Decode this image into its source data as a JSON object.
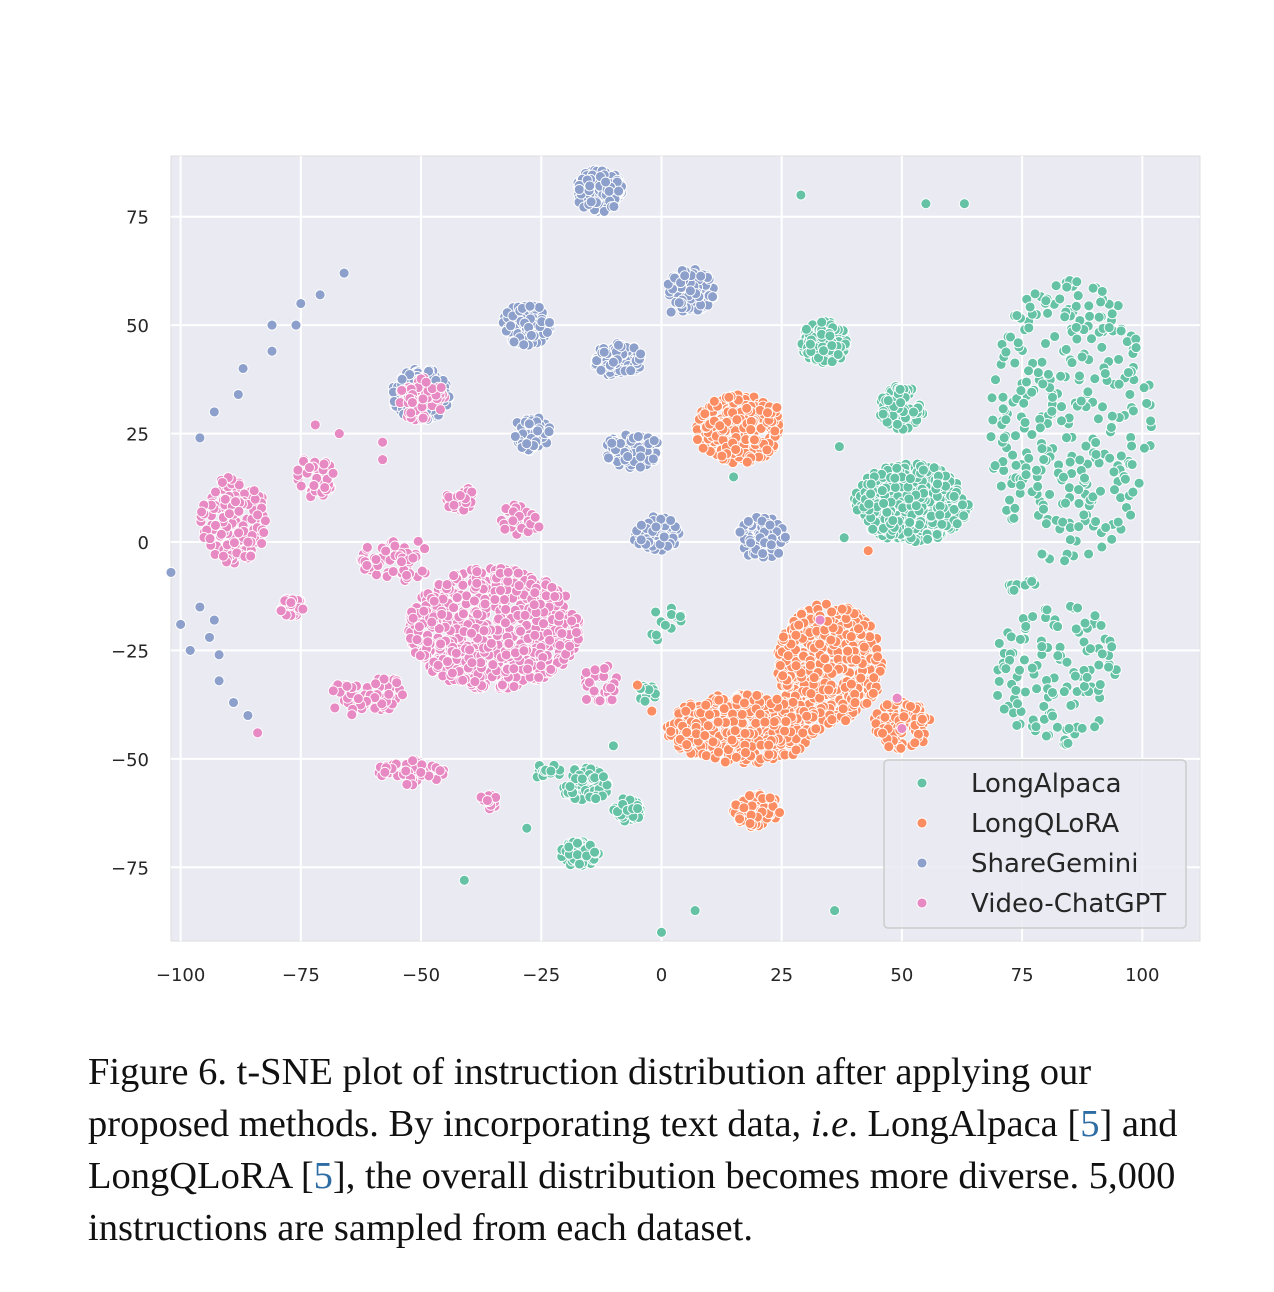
{
  "chart_data": {
    "type": "scatter",
    "xlim": [
      -102,
      112
    ],
    "ylim": [
      -92,
      89
    ],
    "xticks": [
      -100,
      -75,
      -50,
      -25,
      0,
      25,
      50,
      75,
      100
    ],
    "yticks": [
      75,
      50,
      25,
      0,
      -25,
      -50,
      -75
    ],
    "xtick_labels": [
      "−100",
      "−75",
      "−50",
      "−25",
      "0",
      "25",
      "50",
      "75",
      "100"
    ],
    "ytick_labels": [
      "75",
      "50",
      "25",
      "0",
      "−25",
      "−50",
      "−75"
    ],
    "grid": true,
    "legend_position": "lower-right",
    "series": [
      {
        "name": "LongAlpaca",
        "color": "#66c2a5",
        "clusters": [
          {
            "cx": 34,
            "cy": 46,
            "rx": 5,
            "ry": 5,
            "n": 140
          },
          {
            "cx": 50,
            "cy": 31,
            "rx": 5,
            "ry": 5,
            "n": 90
          },
          {
            "cx": 52,
            "cy": 9,
            "rx": 12,
            "ry": 9,
            "n": 450
          },
          {
            "cx": 85,
            "cy": 28,
            "rx": 17,
            "ry": 33,
            "n": 320
          },
          {
            "cx": 82,
            "cy": -30,
            "rx": 13,
            "ry": 17,
            "n": 130
          },
          {
            "cx": 1,
            "cy": -19,
            "rx": 4,
            "ry": 4,
            "n": 14
          },
          {
            "cx": -3,
            "cy": -35,
            "rx": 2,
            "ry": 2,
            "n": 15
          },
          {
            "cx": -16,
            "cy": -56,
            "rx": 5,
            "ry": 4,
            "n": 70
          },
          {
            "cx": -7,
            "cy": -62,
            "rx": 3,
            "ry": 3,
            "n": 40
          },
          {
            "cx": -17,
            "cy": -72,
            "rx": 4,
            "ry": 3,
            "n": 60
          },
          {
            "cx": -24,
            "cy": -53,
            "rx": 3,
            "ry": 2,
            "n": 12
          },
          {
            "cx": 74,
            "cy": -10,
            "rx": 4,
            "ry": 2,
            "n": 10
          }
        ],
        "points": [
          [
            29,
            80
          ],
          [
            55,
            78
          ],
          [
            63,
            78
          ],
          [
            -41,
            -78
          ],
          [
            0,
            -90
          ],
          [
            7,
            -85
          ],
          [
            36,
            -85
          ],
          [
            -28,
            -66
          ],
          [
            -10,
            -47
          ],
          [
            37,
            22
          ],
          [
            15,
            15
          ],
          [
            38,
            1
          ]
        ]
      },
      {
        "name": "LongQLoRA",
        "color": "#fc8d62",
        "clusters": [
          {
            "cx": 16,
            "cy": 26,
            "rx": 9,
            "ry": 8,
            "n": 260
          },
          {
            "cx": 35,
            "cy": -28,
            "rx": 11,
            "ry": 14,
            "n": 500
          },
          {
            "cx": 17,
            "cy": -43,
            "rx": 16,
            "ry": 8,
            "n": 350
          },
          {
            "cx": 20,
            "cy": -62,
            "rx": 5,
            "ry": 4,
            "n": 70
          },
          {
            "cx": 50,
            "cy": -42,
            "rx": 6,
            "ry": 6,
            "n": 80
          }
        ],
        "points": [
          [
            24,
            31
          ],
          [
            -5,
            -33
          ],
          [
            -2,
            -39
          ],
          [
            43,
            -2
          ]
        ]
      },
      {
        "name": "ShareGemini",
        "color": "#8da0cb",
        "clusters": [
          {
            "cx": -13,
            "cy": 81,
            "rx": 5,
            "ry": 5,
            "n": 130
          },
          {
            "cx": 6,
            "cy": 58,
            "rx": 5,
            "ry": 5,
            "n": 130
          },
          {
            "cx": -28,
            "cy": 50,
            "rx": 5,
            "ry": 5,
            "n": 130
          },
          {
            "cx": -9,
            "cy": 42,
            "rx": 5,
            "ry": 4,
            "n": 100
          },
          {
            "cx": -50,
            "cy": 34,
            "rx": 6,
            "ry": 6,
            "n": 150
          },
          {
            "cx": -27,
            "cy": 25,
            "rx": 4,
            "ry": 4,
            "n": 70
          },
          {
            "cx": -6,
            "cy": 21,
            "rx": 6,
            "ry": 4,
            "n": 100
          },
          {
            "cx": -1,
            "cy": 2,
            "rx": 5,
            "ry": 4,
            "n": 90
          },
          {
            "cx": 21,
            "cy": 1,
            "rx": 5,
            "ry": 5,
            "n": 80
          }
        ],
        "points": [
          [
            -66,
            62
          ],
          [
            -71,
            57
          ],
          [
            -75,
            55
          ],
          [
            -81,
            50
          ],
          [
            -76,
            50
          ],
          [
            -81,
            44
          ],
          [
            -87,
            40
          ],
          [
            -88,
            34
          ],
          [
            -93,
            30
          ],
          [
            -96,
            24
          ],
          [
            -102,
            -7
          ],
          [
            -100,
            -19
          ],
          [
            -98,
            -25
          ],
          [
            -96,
            -15
          ],
          [
            -94,
            -22
          ],
          [
            -93,
            -18
          ],
          [
            -92,
            -26
          ],
          [
            -92,
            -32
          ],
          [
            -89,
            -37
          ],
          [
            -86,
            -40
          ],
          [
            2,
            53
          ]
        ]
      },
      {
        "name": "Video-ChatGPT",
        "color": "#e78ac3",
        "clusters": [
          {
            "cx": -89,
            "cy": 5,
            "rx": 7,
            "ry": 10,
            "n": 160
          },
          {
            "cx": -35,
            "cy": -20,
            "rx": 18,
            "ry": 14,
            "n": 800
          },
          {
            "cx": -50,
            "cy": 33,
            "rx": 5,
            "ry": 5,
            "n": 80
          },
          {
            "cx": -42,
            "cy": 10,
            "rx": 3,
            "ry": 3,
            "n": 35
          },
          {
            "cx": -55,
            "cy": -4,
            "rx": 8,
            "ry": 5,
            "n": 60
          },
          {
            "cx": -77,
            "cy": -15,
            "rx": 3,
            "ry": 2,
            "n": 25
          },
          {
            "cx": -72,
            "cy": 15,
            "rx": 4,
            "ry": 5,
            "n": 40
          },
          {
            "cx": -58,
            "cy": -35,
            "rx": 5,
            "ry": 4,
            "n": 45
          },
          {
            "cx": -52,
            "cy": -53,
            "rx": 7,
            "ry": 3,
            "n": 45
          },
          {
            "cx": -30,
            "cy": 5,
            "rx": 5,
            "ry": 4,
            "n": 35
          },
          {
            "cx": -36,
            "cy": -60,
            "rx": 2,
            "ry": 2,
            "n": 15
          },
          {
            "cx": -13,
            "cy": -33,
            "rx": 4,
            "ry": 5,
            "n": 30
          },
          {
            "cx": -65,
            "cy": -36,
            "rx": 4,
            "ry": 4,
            "n": 25
          }
        ],
        "points": [
          [
            -84,
            -44
          ],
          [
            -72,
            27
          ],
          [
            -67,
            25
          ],
          [
            -58,
            19
          ],
          [
            -58,
            23
          ],
          [
            33,
            -18
          ],
          [
            49,
            -36
          ],
          [
            50,
            -43
          ]
        ]
      }
    ]
  },
  "caption": {
    "lead": "Figure 6. t-SNE plot of instruction distribution after applying our proposed methods. By incorporating text data, ",
    "ie": "i.e",
    "part2": ". LongAlpaca [",
    "cite1": "5",
    "part3": "] and LongQLoRA [",
    "cite2": "5",
    "part4": "], the overall distribution becomes more diverse. 5,000 instructions are sampled from each dataset."
  }
}
